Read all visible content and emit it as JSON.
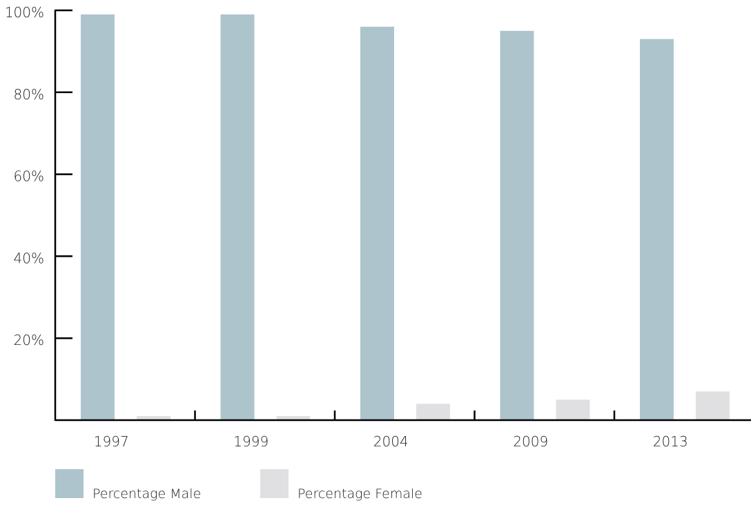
{
  "chart_data": {
    "type": "bar",
    "categories": [
      "1997",
      "1999",
      "2004",
      "2009",
      "2013"
    ],
    "series": [
      {
        "name": "Percentage Male",
        "color": "#adc4cc",
        "values": [
          99,
          99,
          96,
          95,
          93
        ]
      },
      {
        "name": "Percentage Female",
        "color": "#e0e0e2",
        "values": [
          1,
          1,
          4,
          5,
          7
        ]
      }
    ],
    "yticks": [
      20,
      40,
      60,
      80,
      100
    ],
    "ytick_labels": [
      "20%",
      "40%",
      "60%",
      "80%",
      "100%"
    ],
    "ylim": [
      0,
      100
    ],
    "grid": false,
    "legend_position": "bottom-left",
    "axis_color": "#000000"
  }
}
